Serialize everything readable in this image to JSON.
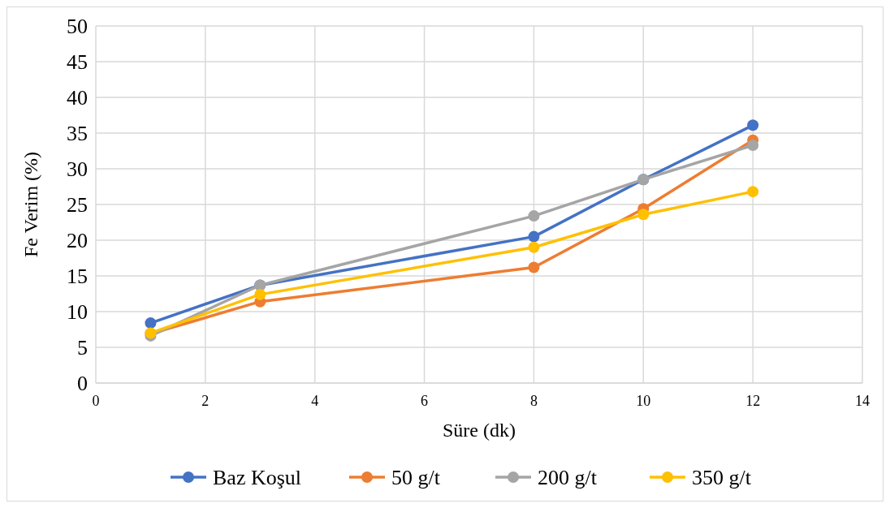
{
  "chart_data": {
    "type": "line",
    "xlabel": "Süre (dk)",
    "ylabel": "Fe Verim (%)",
    "x": [
      1,
      3,
      8,
      10,
      12
    ],
    "xlim": [
      0,
      14
    ],
    "xticks": [
      0,
      2,
      4,
      6,
      8,
      10,
      12,
      14
    ],
    "ylim": [
      0,
      50
    ],
    "yticks": [
      0,
      5,
      10,
      15,
      20,
      25,
      30,
      35,
      40,
      45,
      50
    ],
    "grid": true,
    "legend": "bottom",
    "marker": "circle",
    "line_style": "solid",
    "series": [
      {
        "name": "Baz Koşul",
        "color": "#4472c4",
        "values": [
          8.4,
          13.7,
          20.5,
          28.5,
          36.1
        ]
      },
      {
        "name": "50 g/t",
        "color": "#ed7d31",
        "values": [
          6.9,
          11.4,
          16.2,
          24.4,
          34.0
        ]
      },
      {
        "name": "200 g/t",
        "color": "#a5a5a5",
        "values": [
          6.6,
          13.7,
          23.4,
          28.5,
          33.3
        ]
      },
      {
        "name": "350 g/t",
        "color": "#ffc000",
        "values": [
          7.0,
          12.4,
          19.0,
          23.6,
          26.8
        ]
      }
    ]
  }
}
